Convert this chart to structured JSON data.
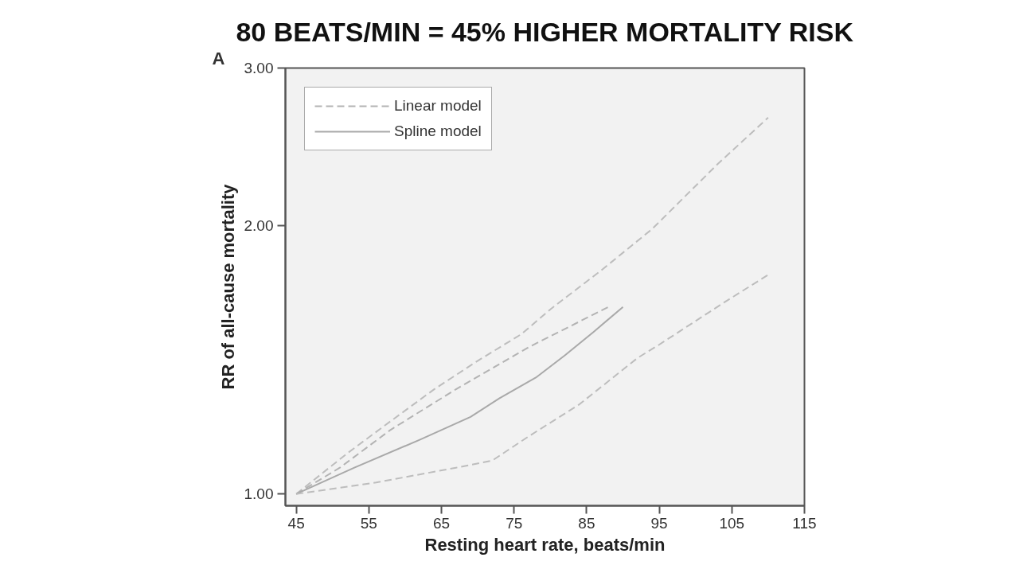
{
  "chart_data": {
    "type": "line",
    "title": "80 BEATS/MIN = 45% HIGHER MORTALITY RISK",
    "xlabel": "Resting heart rate, beats/min",
    "ylabel": "RR of all-cause mortality",
    "annotations": [
      "A"
    ],
    "xlim": [
      43.5,
      115
    ],
    "ylim": [
      0.97,
      3.0
    ],
    "log": "y",
    "xticks": [
      45,
      55,
      65,
      75,
      85,
      95,
      105,
      115
    ],
    "yticks": [
      {
        "value": 1,
        "label": "1.00"
      },
      {
        "value": 2,
        "label": "2.00"
      },
      {
        "value": 3,
        "label": "3.00"
      }
    ],
    "grid": false,
    "legend": "top left",
    "series": [
      {
        "color": "#bdbdbd",
        "line_style": "dashed",
        "x": [
          45,
          52,
          57,
          64,
          70,
          76,
          80,
          87,
          94,
          103,
          110
        ],
        "values": [
          1.0,
          1.11,
          1.19,
          1.31,
          1.41,
          1.51,
          1.61,
          1.78,
          1.98,
          2.34,
          2.64
        ]
      },
      {
        "name": "Linear model",
        "color": "#b3b3b3",
        "line_style": "dashed",
        "x": [
          45,
          51,
          58,
          67,
          77,
          88
        ],
        "values": [
          1.0,
          1.07,
          1.18,
          1.31,
          1.46,
          1.62
        ]
      },
      {
        "name": "Spline model",
        "color": "#a9a9a9",
        "line_style": "solid",
        "x": [
          45,
          53,
          62,
          69,
          73,
          78,
          82,
          86,
          90
        ],
        "values": [
          1.0,
          1.07,
          1.15,
          1.22,
          1.28,
          1.35,
          1.43,
          1.52,
          1.62
        ]
      },
      {
        "color": "#bdbdbd",
        "line_style": "dashed",
        "x": [
          45,
          56,
          67,
          72,
          77,
          84,
          92,
          95,
          104,
          110
        ],
        "values": [
          1.0,
          1.03,
          1.07,
          1.09,
          1.16,
          1.26,
          1.42,
          1.47,
          1.64,
          1.76
        ]
      }
    ]
  }
}
